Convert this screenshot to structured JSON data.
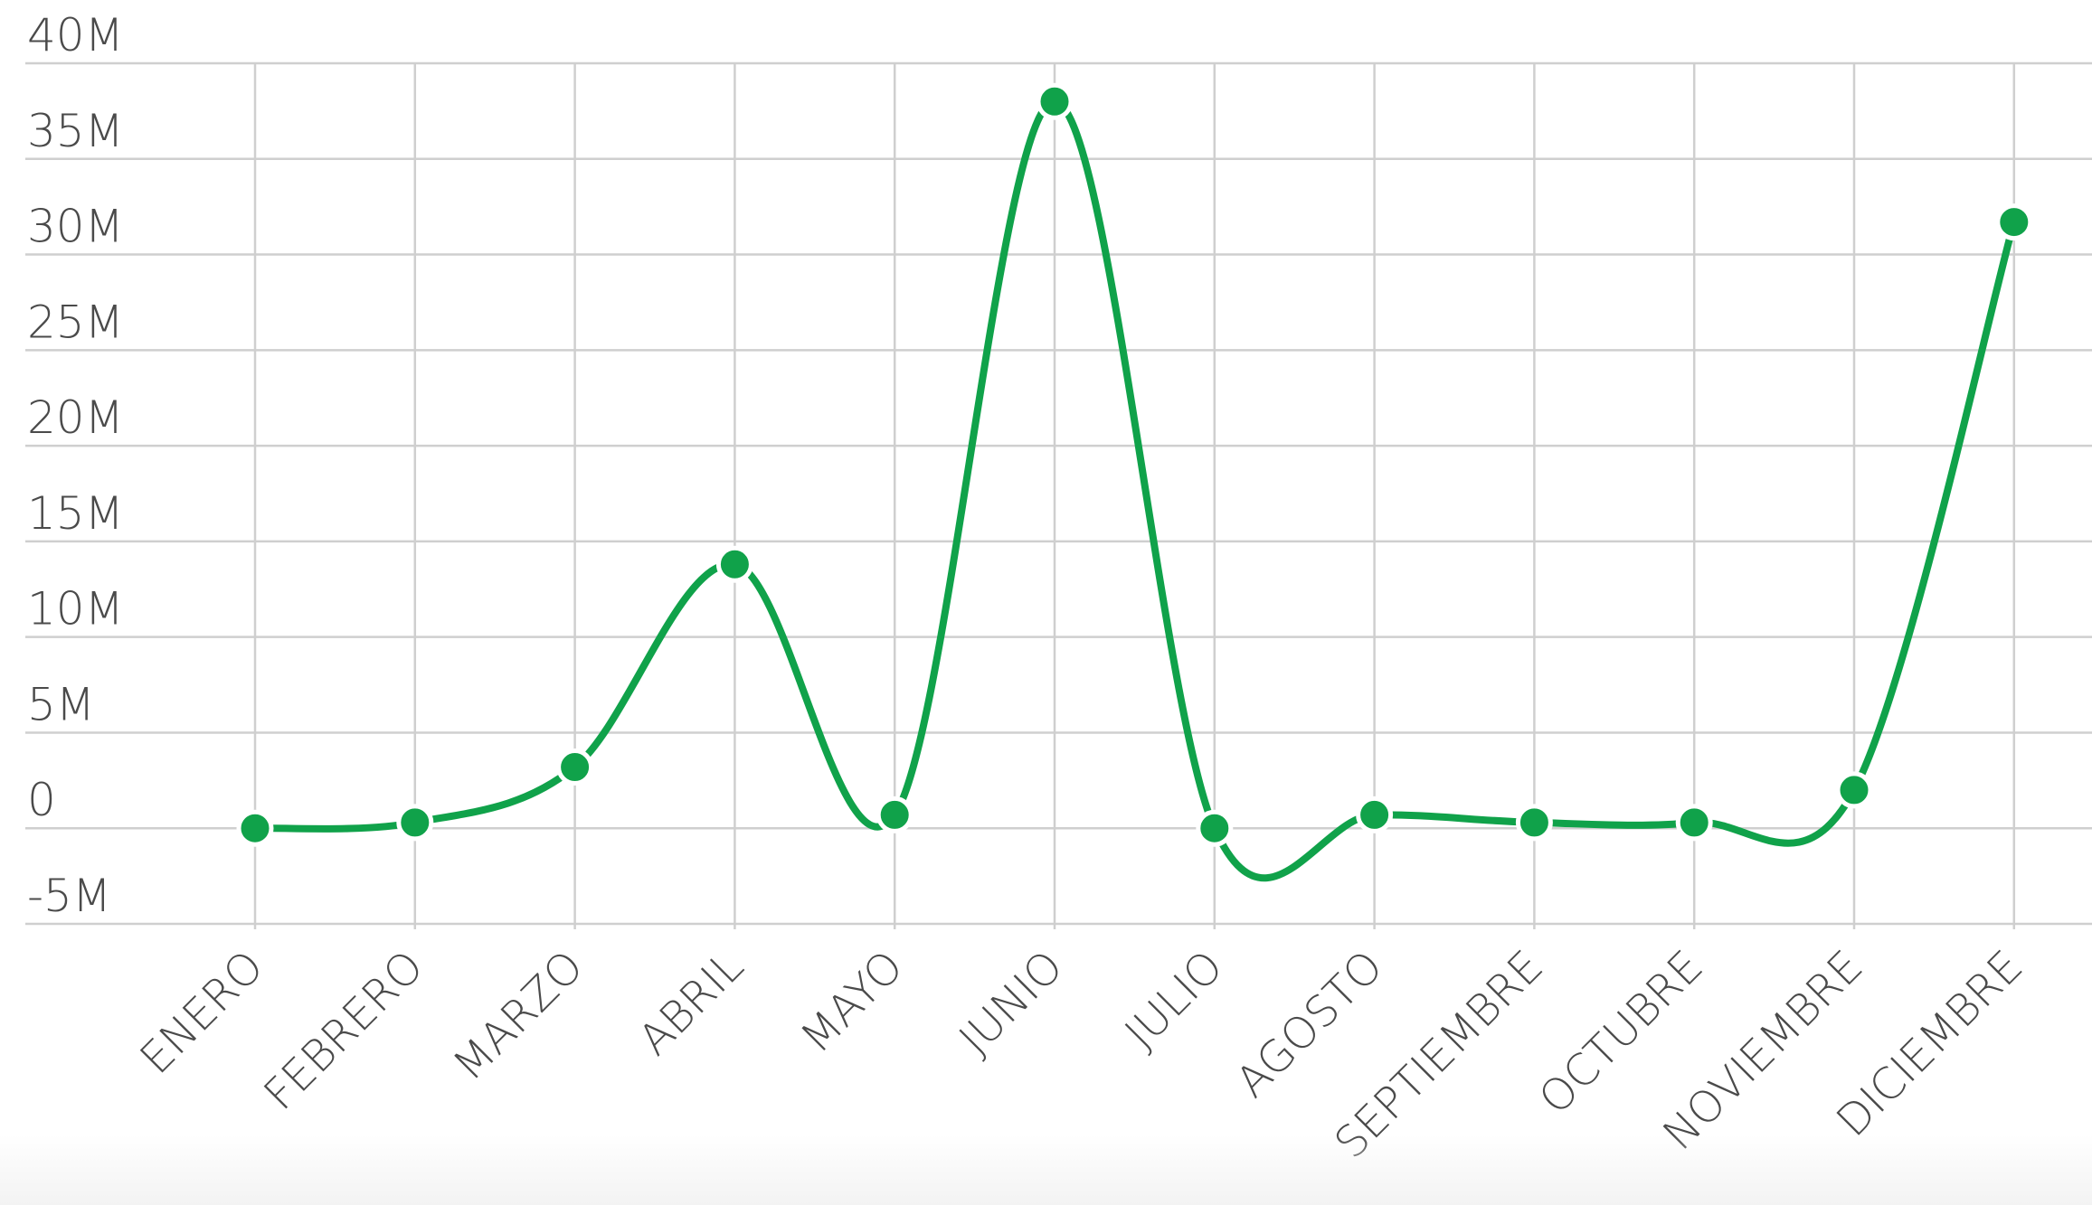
{
  "chart_data": {
    "type": "line",
    "title": "",
    "xlabel": "",
    "ylabel": "",
    "categories": [
      "ENERO",
      "FEBRERO",
      "MARZO",
      "ABRIL",
      "MAYO",
      "JUNIO",
      "JULIO",
      "AGOSTO",
      "SEPTIEMBRE",
      "OCTUBRE",
      "NOVIEMBRE",
      "DICIEMBRE"
    ],
    "series": [
      {
        "values": [
          0,
          300000,
          3200000,
          13800000,
          700000,
          38000000,
          0,
          700000,
          300000,
          300000,
          2000000,
          31700000
        ],
        "color": "#10a24a"
      }
    ],
    "ylim": [
      -5000000,
      40000000
    ],
    "y_ticks": [
      -5000000,
      0,
      5000000,
      10000000,
      15000000,
      20000000,
      25000000,
      30000000,
      35000000,
      40000000
    ],
    "y_tick_labels": [
      "-5M",
      "0",
      "5M",
      "10M",
      "15M",
      "20M",
      "25M",
      "30M",
      "35M",
      "40M"
    ],
    "grid": true,
    "legend": "none",
    "curve": "smooth",
    "colors": {
      "grid": "#cfcfcf",
      "text": "#4a4a4a",
      "point_border": "#ffffff"
    }
  }
}
